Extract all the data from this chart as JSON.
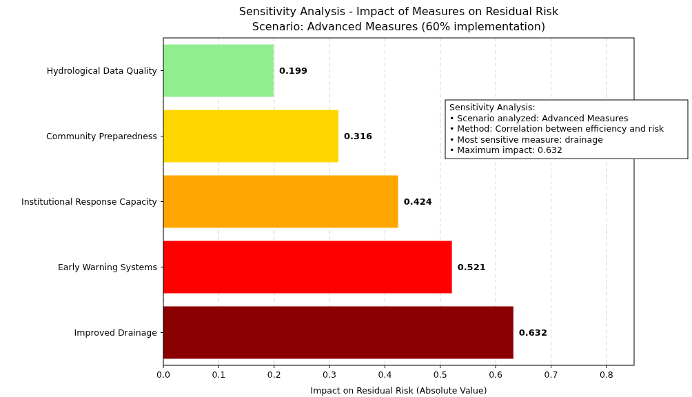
{
  "chart_data": {
    "type": "bar",
    "orientation": "horizontal",
    "title": "Sensitivity Analysis - Impact of Measures on Residual Risk",
    "subtitle": "Scenario: Advanced Measures (60% implementation)",
    "xlabel": "Impact on Residual Risk (Absolute Value)",
    "categories": [
      "Hydrological Data Quality",
      "Community Preparedness",
      "Institutional Response Capacity",
      "Early Warning Systems",
      "Improved Drainage"
    ],
    "values": [
      0.199,
      0.316,
      0.424,
      0.521,
      0.632
    ],
    "colors": [
      "#90ee90",
      "#ffd700",
      "#ffa500",
      "#ff0000",
      "#8b0000"
    ],
    "xlim": [
      0,
      0.85
    ],
    "xticks": [
      {
        "value": 0,
        "label": "0.0"
      },
      0.1,
      0.2,
      0.3,
      0.4,
      0.5,
      0.6,
      0.7,
      0.8
    ],
    "grid": "x",
    "data_labels": true,
    "annotations": [
      "Sensitivity Analysis:\n• Scenario analyzed: Advanced Measures\n• Method: Correlation between efficiency and risk\n• Most sensitive measure: drainage\n• Maximum impact: 0.632"
    ]
  }
}
